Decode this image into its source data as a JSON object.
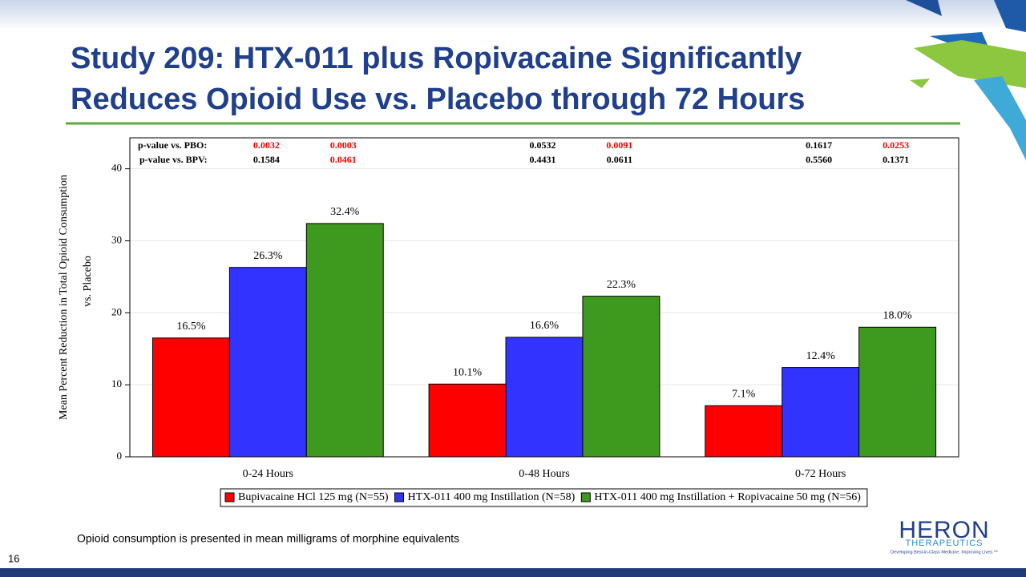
{
  "slide": {
    "title": [
      "Study 209: HTX-011 plus Ropivacaine Significantly",
      "Reduces Opioid Use vs. Placebo through 72 Hours"
    ],
    "footnote": "Opioid consumption is presented in mean milligrams of morphine equivalents",
    "page_number": "16",
    "logo": {
      "name": "HERON",
      "sub": "THERAPEUTICS",
      "tagline": "Developing Best-in-Class Medicine. Improving Lives.™"
    }
  },
  "chart_data": {
    "type": "bar",
    "y_label": [
      "Mean Percent Reduction in Total Opioid Consumption",
      "vs. Placebo"
    ],
    "categories": [
      "0-24 Hours",
      "0-48 Hours",
      "0-72 Hours"
    ],
    "series": [
      {
        "name": "Bupivacaine HCl 125 mg (N=55)",
        "color": "#ff0000",
        "values": [
          16.5,
          10.1,
          7.1
        ],
        "value_labels": [
          "16.5%",
          "10.1%",
          "7.1%"
        ]
      },
      {
        "name": "HTX-011 400 mg Instillation (N=58)",
        "color": "#3333ff",
        "values": [
          26.3,
          16.6,
          12.4
        ],
        "value_labels": [
          "26.3%",
          "16.6%",
          "12.4%"
        ]
      },
      {
        "name": "HTX-011 400 mg Instillation + Ropivacaine 50 mg (N=56)",
        "color": "#3e9a1e",
        "values": [
          32.4,
          22.3,
          18.0
        ],
        "value_labels": [
          "32.4%",
          "22.3%",
          "18.0%"
        ]
      }
    ],
    "p_value_rows": [
      {
        "label": "p-value vs. PBO:",
        "values": [
          "0.0032",
          "0.0003",
          "0.0532",
          "0.0091",
          "0.1617",
          "0.0253"
        ],
        "colors": [
          "#ff0000",
          "#ff0000",
          "#000000",
          "#ff0000",
          "#000000",
          "#ff0000"
        ]
      },
      {
        "label": "p-value vs. BPV:",
        "values": [
          "0.1584",
          "0.0461",
          "0.4431",
          "0.0611",
          "0.5560",
          "0.1371"
        ],
        "colors": [
          "#000000",
          "#ff0000",
          "#000000",
          "#000000",
          "#000000",
          "#000000"
        ]
      }
    ],
    "ylim": [
      0,
      44.3
    ],
    "yticks": [
      0,
      10,
      20,
      30,
      40
    ],
    "grid": true
  }
}
